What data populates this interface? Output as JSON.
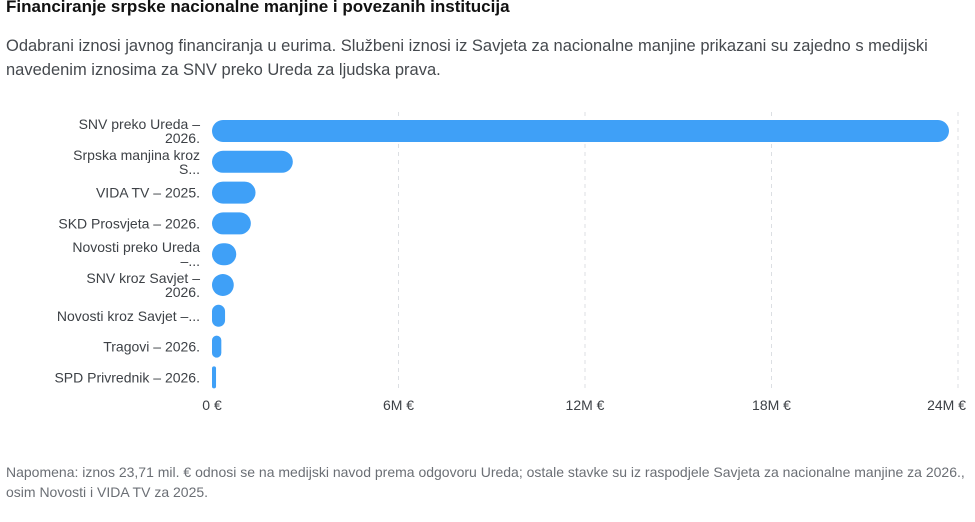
{
  "title": "Financiranje srpske nacionalne manjine i povezanih institucija",
  "subtitle": "Odabrani iznosi javnog financiranja u eurima. Službeni iznosi iz Savjeta za nacionalne manjine prikazani su zajedno s medijski navedenim iznosima za SNV preko Ureda za ljudska prava.",
  "note": "Napomena: iznos 23,71 mil. € odnosi se na medijski navod prema odgovoru Ureda; ostale stavke su iz raspodjele Savjeta za nacionalne manjine za 2026., osim Novosti i VIDA TV za 2025.",
  "colors": {
    "bar": "#3fa0f7",
    "grid": "#dcdfe3"
  },
  "chart_data": {
    "type": "bar",
    "orientation": "horizontal",
    "categories": [
      [
        "SNV preko Ureda –",
        "2026."
      ],
      [
        "Srpska manjina kroz",
        "S..."
      ],
      [
        "VIDA TV – 2025."
      ],
      [
        "SKD Prosvjeta – 2026."
      ],
      [
        "Novosti preko Ureda",
        "–..."
      ],
      [
        "SNV kroz Savjet –",
        "2026."
      ],
      [
        "Novosti kroz Savjet –..."
      ],
      [
        "Tragovi – 2026."
      ],
      [
        "SPD Privrednik – 2026."
      ]
    ],
    "values": [
      23710000,
      2600000,
      1400000,
      1250000,
      780000,
      700000,
      420000,
      300000,
      130000
    ],
    "xlim": [
      0,
      24000000
    ],
    "xticks": [
      0,
      6000000,
      12000000,
      18000000,
      24000000
    ],
    "xtick_labels": [
      "0 €",
      "6M €",
      "12M €",
      "18M €",
      "24M €"
    ],
    "grid": true,
    "legend": "none"
  }
}
